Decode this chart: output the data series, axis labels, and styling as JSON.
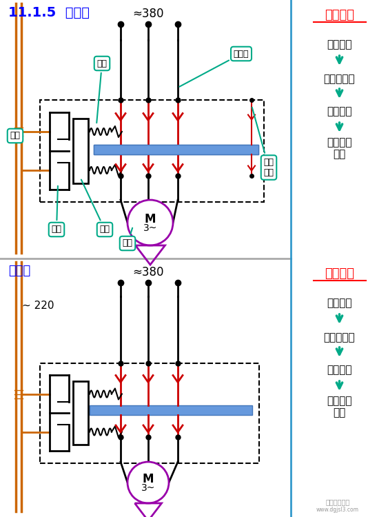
{
  "bg_color": "#ffffff",
  "top": {
    "title": "11.1.5  接触器",
    "title_color": "#0000ff",
    "voltage_label": "≈380",
    "section_label": "动作过程",
    "section_label_color": "#ff0000",
    "steps": [
      "线圈通电",
      "衔铁被吸合",
      "触头闭合",
      "电机接通\n电源"
    ]
  },
  "bottom": {
    "title": "接触器",
    "title_color": "#0000ff",
    "voltage_label": "≈380",
    "coil_voltage": "~ 220",
    "section_label": "动作过程",
    "section_label_color": "#ff0000",
    "steps": [
      "线圈通电",
      "衔铁被吸合",
      "触头闭合",
      "电机接通\n电源"
    ]
  },
  "colors": {
    "black": "#000000",
    "red": "#cc0000",
    "blue_bar": "#6699dd",
    "orange": "#cc6600",
    "purple": "#9900aa",
    "teal": "#00aa88",
    "separator": "#aaaaaa"
  }
}
